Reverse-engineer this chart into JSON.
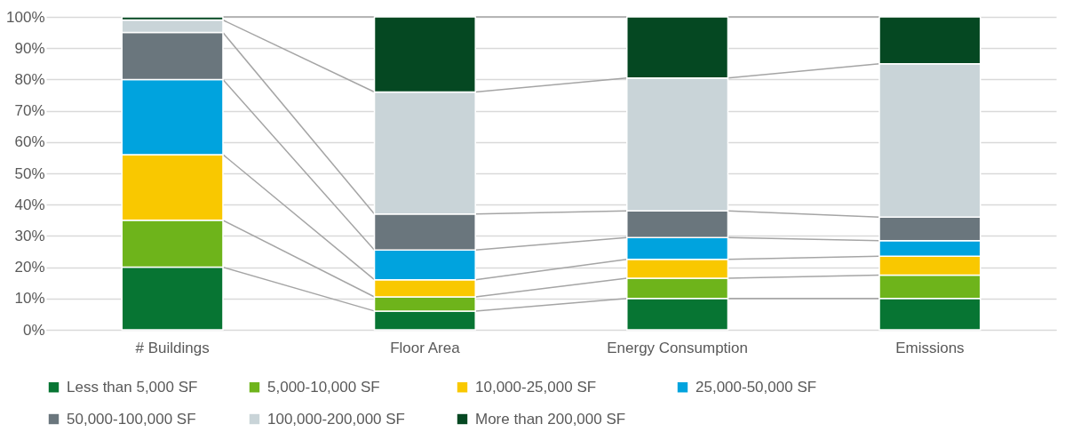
{
  "chart_data": {
    "type": "bar",
    "stacked": true,
    "categories": [
      "# Buildings",
      "Floor Area",
      "Energy Consumption",
      "Emissions"
    ],
    "series": [
      {
        "name": "Less than 5,000 SF",
        "color": "#077533",
        "values": [
          20,
          6,
          10,
          10
        ]
      },
      {
        "name": "5,000-10,000 SF",
        "color": "#6eb41b",
        "values": [
          15,
          4.5,
          6.5,
          7.5
        ]
      },
      {
        "name": "10,000-25,000 SF",
        "color": "#f9c800",
        "values": [
          21,
          5.5,
          6,
          6
        ]
      },
      {
        "name": "25,000-50,000 SF",
        "color": "#00a3de",
        "values": [
          24,
          9.5,
          7,
          5
        ]
      },
      {
        "name": "50,000-100,000 SF",
        "color": "#6a767d",
        "values": [
          15,
          11.5,
          8.5,
          7.5
        ]
      },
      {
        "name": "100,000-200,000 SF",
        "color": "#c9d4d8",
        "values": [
          4,
          39,
          42.5,
          49
        ]
      },
      {
        "name": "More than 200,000 SF",
        "color": "#054822",
        "values": [
          1,
          24,
          19.5,
          15
        ]
      }
    ],
    "ylim": [
      0,
      100
    ],
    "yticks": [
      {
        "value": 0,
        "label": "0%"
      },
      {
        "value": 10,
        "label": "10%"
      },
      {
        "value": 20,
        "label": "20%"
      },
      {
        "value": 30,
        "label": "30%"
      },
      {
        "value": 40,
        "label": "40%"
      },
      {
        "value": 50,
        "label": "50%"
      },
      {
        "value": 60,
        "label": "60%"
      },
      {
        "value": 70,
        "label": "70%"
      },
      {
        "value": 80,
        "label": "80%"
      },
      {
        "value": 90,
        "label": "90%"
      },
      {
        "value": 100,
        "label": "100%"
      }
    ],
    "grid": "y",
    "legend": "bottom"
  }
}
